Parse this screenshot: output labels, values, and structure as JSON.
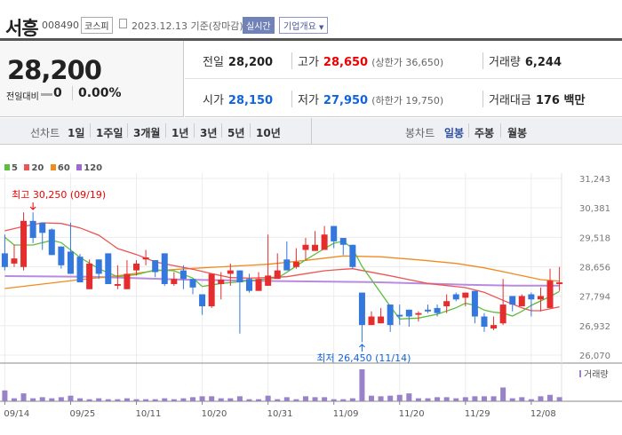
{
  "header": {
    "name": "서흥",
    "code": "008490",
    "market": "코스피",
    "date": "2023.12.13 기준(장마감)",
    "realtime": "실시간",
    "company_info": "기업개요"
  },
  "price": {
    "current": "28,200",
    "change_label": "전일대비",
    "change": "0",
    "change_pct": "0.00%"
  },
  "info": {
    "prev_label": "전일",
    "prev": "28,200",
    "high_label": "고가",
    "high": "28,650",
    "upper_limit": "(상한가 36,650)",
    "volume_label": "거래량",
    "volume": "6,244",
    "open_label": "시가",
    "open": "28,150",
    "low_label": "저가",
    "low": "27,950",
    "lower_limit": "(하한가 19,750)",
    "value_label": "거래대금",
    "value": "176 백만"
  },
  "tabs": {
    "line_label": "선차트",
    "line": [
      "1일",
      "1주일",
      "3개월",
      "1년",
      "3년",
      "5년",
      "10년"
    ],
    "candle_label": "봉차트",
    "candle": [
      "일봉",
      "주봉",
      "월봉"
    ],
    "candle_active": "일봉"
  },
  "legend": [
    {
      "label": "5",
      "color": "#5cbf3c"
    },
    {
      "label": "20",
      "color": "#ef5353"
    },
    {
      "label": "60",
      "color": "#f28a1e"
    },
    {
      "label": "120",
      "color": "#a06ad0"
    }
  ],
  "chart_data": {
    "type": "candlestick",
    "y_ticks": [
      "31,243",
      "30,381",
      "29,518",
      "28,656",
      "27,794",
      "26,932",
      "26,070"
    ],
    "ylim": [
      26070,
      31243
    ],
    "x_ticks": [
      {
        "index": 1,
        "label": "09/14"
      },
      {
        "index": 8,
        "label": "09/25"
      },
      {
        "index": 15,
        "label": "10/11"
      },
      {
        "index": 22,
        "label": "10/20"
      },
      {
        "index": 29,
        "label": "10/31"
      },
      {
        "index": 36,
        "label": "11/09"
      },
      {
        "index": 43,
        "label": "11/20"
      },
      {
        "index": 50,
        "label": "11/29"
      },
      {
        "index": 57,
        "label": "12/08"
      }
    ],
    "up_color": "#e52d2d",
    "down_color": "#3478de",
    "ohlc": [
      [
        29050,
        29600,
        28550,
        28650
      ],
      [
        28750,
        29300,
        28650,
        28900
      ],
      [
        28650,
        30250,
        28550,
        30000
      ],
      [
        30000,
        30250,
        29350,
        29500
      ],
      [
        29950,
        29950,
        29150,
        29650
      ],
      [
        29750,
        29780,
        29000,
        29000
      ],
      [
        29250,
        29250,
        28600,
        28700
      ],
      [
        29100,
        29950,
        28450,
        28450
      ],
      [
        28950,
        29030,
        28200,
        28200
      ],
      [
        28000,
        28870,
        28000,
        28750
      ],
      [
        28870,
        28870,
        28300,
        28450
      ],
      [
        29050,
        29050,
        28150,
        28150
      ],
      [
        28100,
        28700,
        28000,
        28150
      ],
      [
        28000,
        28850,
        28000,
        28450
      ],
      [
        28550,
        28850,
        28400,
        28750
      ],
      [
        28870,
        29150,
        28700,
        28930
      ],
      [
        28850,
        28850,
        28350,
        28500
      ],
      [
        29050,
        29050,
        28100,
        28150
      ],
      [
        28150,
        28500,
        28100,
        28300
      ],
      [
        28550,
        28700,
        28000,
        28300
      ],
      [
        28300,
        28300,
        27850,
        28050
      ],
      [
        27850,
        27850,
        27250,
        27500
      ],
      [
        27500,
        28450,
        27450,
        28450
      ],
      [
        28150,
        28500,
        27700,
        28280
      ],
      [
        28450,
        28750,
        28100,
        28550
      ],
      [
        28550,
        28550,
        26700,
        28200
      ],
      [
        28300,
        28450,
        27900,
        27950
      ],
      [
        27950,
        28500,
        27950,
        28300
      ],
      [
        28100,
        29600,
        28100,
        28400
      ],
      [
        28300,
        29050,
        28300,
        28550
      ],
      [
        28870,
        29400,
        28550,
        28550
      ],
      [
        28650,
        29200,
        28600,
        28800
      ],
      [
        29150,
        29500,
        28850,
        29300
      ],
      [
        29120,
        29700,
        29120,
        29300
      ],
      [
        29150,
        29850,
        29150,
        29600
      ],
      [
        29850,
        29850,
        29200,
        29400
      ],
      [
        29500,
        29500,
        29000,
        29300
      ],
      [
        29300,
        29300,
        28600,
        28650
      ],
      [
        27900,
        27900,
        26450,
        26950
      ],
      [
        26950,
        27350,
        26950,
        27200
      ],
      [
        27000,
        27450,
        27000,
        27200
      ],
      [
        27550,
        27550,
        26750,
        26950
      ],
      [
        27250,
        27550,
        26950,
        27200
      ],
      [
        27400,
        27400,
        26900,
        27200
      ],
      [
        27250,
        27350,
        27050,
        27300
      ],
      [
        27400,
        27550,
        27300,
        27350
      ],
      [
        27450,
        27550,
        27200,
        27300
      ],
      [
        27500,
        27850,
        27300,
        27650
      ],
      [
        27850,
        27900,
        27650,
        27700
      ],
      [
        27750,
        27900,
        27500,
        27900
      ],
      [
        27950,
        27950,
        27000,
        27200
      ],
      [
        27200,
        27300,
        26750,
        26900
      ],
      [
        26850,
        27200,
        26800,
        26950
      ],
      [
        27000,
        28300,
        26950,
        27550
      ],
      [
        27800,
        27800,
        27350,
        27550
      ],
      [
        27500,
        27850,
        27500,
        27800
      ],
      [
        27850,
        27900,
        27200,
        27700
      ],
      [
        27700,
        28050,
        27350,
        27800
      ],
      [
        27450,
        28600,
        27450,
        28250
      ],
      [
        28150,
        28650,
        27950,
        28200
      ]
    ],
    "volume_label": "거래량",
    "volume_color": "#9a82c8",
    "volume": [
      16500,
      4500,
      12000,
      4500,
      6200,
      4500,
      6200,
      8500,
      4500,
      3100,
      4500,
      3100,
      3100,
      4500,
      3100,
      3100,
      3100,
      4500,
      3100,
      4500,
      6200,
      7600,
      7600,
      4500,
      4500,
      7600,
      3100,
      3100,
      8500,
      3100,
      6200,
      3100,
      7600,
      6200,
      6200,
      3100,
      3100,
      4500,
      48600,
      8500,
      7600,
      8500,
      9800,
      12000,
      4500,
      4500,
      6200,
      6200,
      4500,
      6200,
      7600,
      7600,
      7600,
      21000,
      4500,
      6200,
      3100,
      7600,
      9800,
      6244
    ],
    "ma": {
      "5": [
        [
          1,
          29519
        ],
        [
          2,
          29293
        ],
        [
          4,
          29293
        ],
        [
          6,
          29432
        ],
        [
          7,
          29363
        ],
        [
          9,
          28930
        ],
        [
          11,
          28600
        ],
        [
          13,
          28366
        ],
        [
          15,
          28427
        ],
        [
          17,
          28566
        ],
        [
          19,
          28540
        ],
        [
          21,
          28323
        ],
        [
          22,
          28080
        ],
        [
          24,
          28167
        ],
        [
          26,
          28219
        ],
        [
          28,
          28280
        ],
        [
          30,
          28323
        ],
        [
          31,
          28496
        ],
        [
          33,
          28860
        ],
        [
          35,
          29190
        ],
        [
          36,
          29345
        ],
        [
          37,
          29406
        ],
        [
          38,
          29190
        ],
        [
          39,
          28670
        ],
        [
          42,
          27500
        ],
        [
          43,
          27127
        ],
        [
          45,
          27153
        ],
        [
          47,
          27266
        ],
        [
          49,
          27456
        ],
        [
          50,
          27587
        ],
        [
          51,
          27526
        ],
        [
          52,
          27387
        ],
        [
          53,
          27326
        ],
        [
          54,
          27300
        ],
        [
          55,
          27214
        ],
        [
          56,
          27352
        ],
        [
          57,
          27526
        ],
        [
          59,
          27786
        ],
        [
          60,
          27933
        ]
      ],
      "20": [
        [
          1,
          29709
        ],
        [
          3,
          29840
        ],
        [
          5,
          29943
        ],
        [
          7,
          29926
        ],
        [
          9,
          29796
        ],
        [
          11,
          29580
        ],
        [
          13,
          29190
        ],
        [
          15,
          29016
        ],
        [
          17,
          28800
        ],
        [
          19,
          28687
        ],
        [
          21,
          28583
        ],
        [
          23,
          28453
        ],
        [
          25,
          28340
        ],
        [
          27,
          28323
        ],
        [
          29,
          28340
        ],
        [
          31,
          28366
        ],
        [
          33,
          28453
        ],
        [
          35,
          28540
        ],
        [
          37,
          28583
        ],
        [
          38,
          28600
        ],
        [
          40,
          28496
        ],
        [
          42,
          28392
        ],
        [
          44,
          28280
        ],
        [
          46,
          28167
        ],
        [
          48,
          28106
        ],
        [
          50,
          28046
        ],
        [
          52,
          27907
        ],
        [
          54,
          27673
        ],
        [
          56,
          27456
        ],
        [
          57,
          27370
        ],
        [
          58,
          27370
        ],
        [
          60,
          27483
        ]
      ],
      "60": [
        [
          1,
          28020
        ],
        [
          5,
          28150
        ],
        [
          9,
          28280
        ],
        [
          13,
          28392
        ],
        [
          17,
          28540
        ],
        [
          21,
          28609
        ],
        [
          25,
          28670
        ],
        [
          29,
          28730
        ],
        [
          33,
          28843
        ],
        [
          37,
          28973
        ],
        [
          41,
          28947
        ],
        [
          45,
          28860
        ],
        [
          49,
          28756
        ],
        [
          52,
          28626
        ],
        [
          55,
          28453
        ],
        [
          58,
          28280
        ],
        [
          60,
          28237
        ]
      ],
      "120": [
        [
          1,
          28384
        ],
        [
          10,
          28366
        ],
        [
          20,
          28280
        ],
        [
          30,
          28237
        ],
        [
          40,
          28210
        ],
        [
          50,
          28132
        ],
        [
          55,
          28106
        ],
        [
          60,
          28106
        ]
      ]
    },
    "annotations": {
      "high": {
        "text": "최고 30,250 (09/19)",
        "index": 4
      },
      "low": {
        "text": "최저 26,450 (11/14)",
        "index": 39
      }
    }
  }
}
